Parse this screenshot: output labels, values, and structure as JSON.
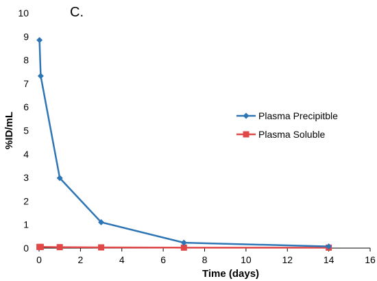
{
  "chart_data": {
    "type": "line",
    "panel_label": "C.",
    "xlabel": "Time (days)",
    "ylabel": "%ID/mL",
    "xlim": [
      0,
      16
    ],
    "ylim": [
      0,
      10
    ],
    "xticks": [
      0,
      2,
      4,
      6,
      8,
      10,
      12,
      14,
      16
    ],
    "yticks": [
      0,
      1,
      2,
      3,
      4,
      5,
      6,
      7,
      8,
      9,
      10
    ],
    "grid": false,
    "legend_position": "right",
    "series": [
      {
        "name": "Plasma Precipitble",
        "color": "#2E75B6",
        "marker": "diamond",
        "x": [
          0.02,
          0.08,
          1,
          3,
          7,
          14
        ],
        "y": [
          8.85,
          7.32,
          2.98,
          1.1,
          0.23,
          0.07
        ]
      },
      {
        "name": "Plasma Soluble",
        "color": "#E04848",
        "marker": "square",
        "x": [
          0.02,
          0.08,
          1,
          3,
          7,
          14
        ],
        "y": [
          0.05,
          0.05,
          0.04,
          0.03,
          0.02,
          0.02
        ]
      }
    ]
  }
}
